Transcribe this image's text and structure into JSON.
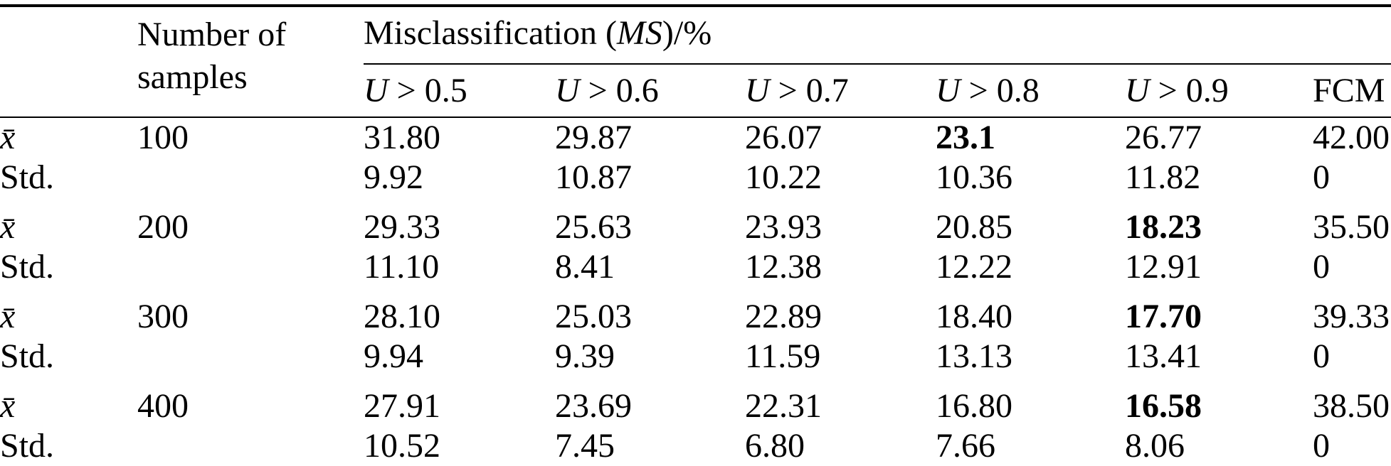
{
  "table": {
    "corner_label": "",
    "samples_header": "Number of samples",
    "group_header": {
      "prefix": "Misclassification (",
      "italic": "MS",
      "suffix": ")/%"
    },
    "columns": [
      {
        "variable": "U",
        "rest": " > 0.5"
      },
      {
        "variable": "U",
        "rest": " > 0.6"
      },
      {
        "variable": "U",
        "rest": " > 0.7"
      },
      {
        "variable": "U",
        "rest": " > 0.8"
      },
      {
        "variable": "U",
        "rest": " > 0.9"
      },
      {
        "variable": "",
        "rest": "FCM"
      }
    ],
    "rows": [
      {
        "label": "x̄",
        "samples": "100",
        "values": [
          "31.80",
          "29.87",
          "26.07",
          "23.1",
          "26.77",
          "42.00"
        ]
      },
      {
        "label": "Std.",
        "samples": "",
        "values": [
          "9.92",
          "10.87",
          "10.22",
          "10.36",
          "11.82",
          "0"
        ]
      },
      {
        "label": "x̄",
        "samples": "200",
        "values": [
          "29.33",
          "25.63",
          "23.93",
          "20.85",
          "18.23",
          "35.50"
        ]
      },
      {
        "label": "Std.",
        "samples": "",
        "values": [
          "11.10",
          "8.41",
          "12.38",
          "12.22",
          "12.91",
          "0"
        ]
      },
      {
        "label": "x̄",
        "samples": "300",
        "values": [
          "28.10",
          "25.03",
          "22.89",
          "18.40",
          "17.70",
          "39.33"
        ]
      },
      {
        "label": "Std.",
        "samples": "",
        "values": [
          "9.94",
          "9.39",
          "11.59",
          "13.13",
          "13.41",
          "0"
        ]
      },
      {
        "label": "x̄",
        "samples": "400",
        "values": [
          "27.91",
          "23.69",
          "22.31",
          "16.80",
          "16.58",
          "38.50"
        ]
      },
      {
        "label": "Std.",
        "samples": "",
        "values": [
          "10.52",
          "7.45",
          "6.80",
          "7.66",
          "8.06",
          "0"
        ]
      }
    ]
  }
}
